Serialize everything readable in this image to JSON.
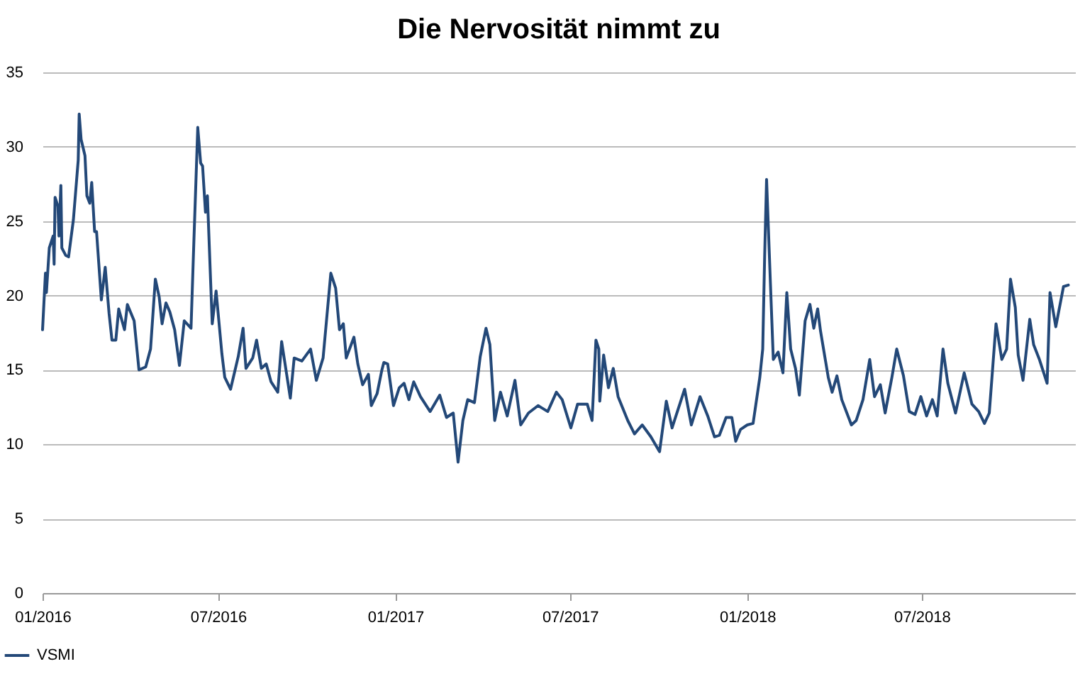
{
  "chart_data": {
    "type": "line",
    "title": "Die Nervosität nimmt zu",
    "x": [
      "2016-01-01",
      "2016-01-04",
      "2016-01-05",
      "2016-01-08",
      "2016-01-12",
      "2016-01-13",
      "2016-01-14",
      "2016-01-17",
      "2016-01-18",
      "2016-01-20",
      "2016-01-21",
      "2016-01-25",
      "2016-01-28",
      "2016-02-02",
      "2016-02-07",
      "2016-02-08",
      "2016-02-10",
      "2016-02-14",
      "2016-02-16",
      "2016-02-19",
      "2016-02-21",
      "2016-02-24",
      "2016-02-26",
      "2016-03-02",
      "2016-03-06",
      "2016-03-10",
      "2016-03-13",
      "2016-03-17",
      "2016-03-20",
      "2016-03-26",
      "2016-03-29",
      "2016-04-05",
      "2016-04-10",
      "2016-04-17",
      "2016-04-22",
      "2016-04-27",
      "2016-05-01",
      "2016-05-04",
      "2016-05-08",
      "2016-05-12",
      "2016-05-17",
      "2016-05-22",
      "2016-05-27",
      "2016-06-03",
      "2016-06-06",
      "2016-06-10",
      "2016-06-13",
      "2016-06-15",
      "2016-06-18",
      "2016-06-20",
      "2016-06-25",
      "2016-06-29",
      "2016-07-05",
      "2016-07-08",
      "2016-07-14",
      "2016-07-22",
      "2016-07-27",
      "2016-07-30",
      "2016-08-06",
      "2016-08-10",
      "2016-08-15",
      "2016-08-20",
      "2016-08-25",
      "2016-09-01",
      "2016-09-05",
      "2016-09-14",
      "2016-09-18",
      "2016-09-26",
      "2016-10-05",
      "2016-10-11",
      "2016-10-18",
      "2016-10-26",
      "2016-10-31",
      "2016-11-04",
      "2016-11-08",
      "2016-11-11",
      "2016-11-19",
      "2016-11-23",
      "2016-11-28",
      "2016-12-04",
      "2016-12-07",
      "2016-12-13",
      "2016-12-18",
      "2016-12-20",
      "2016-12-24",
      "2016-12-30",
      "2017-01-05",
      "2017-01-10",
      "2017-01-15",
      "2017-01-20",
      "2017-01-27",
      "2017-02-06",
      "2017-02-16",
      "2017-02-23",
      "2017-03-02",
      "2017-03-07",
      "2017-03-12",
      "2017-03-17",
      "2017-03-24",
      "2017-03-30",
      "2017-04-05",
      "2017-04-09",
      "2017-04-14",
      "2017-04-20",
      "2017-04-27",
      "2017-05-05",
      "2017-05-11",
      "2017-05-19",
      "2017-05-29",
      "2017-06-08",
      "2017-06-17",
      "2017-06-23",
      "2017-07-02",
      "2017-07-09",
      "2017-07-19",
      "2017-07-24",
      "2017-07-28",
      "2017-07-31",
      "2017-08-01",
      "2017-08-05",
      "2017-08-10",
      "2017-08-15",
      "2017-08-20",
      "2017-08-30",
      "2017-09-06",
      "2017-09-14",
      "2017-09-23",
      "2017-10-02",
      "2017-10-09",
      "2017-10-15",
      "2017-10-28",
      "2017-11-04",
      "2017-11-13",
      "2017-11-21",
      "2017-11-28",
      "2017-12-03",
      "2017-12-10",
      "2017-12-16",
      "2017-12-20",
      "2017-12-25",
      "2018-01-01",
      "2018-01-07",
      "2018-01-14",
      "2018-01-17",
      "2018-01-19",
      "2018-01-21",
      "2018-01-25",
      "2018-01-28",
      "2018-02-02",
      "2018-02-07",
      "2018-02-11",
      "2018-02-15",
      "2018-02-20",
      "2018-02-24",
      "2018-03-02",
      "2018-03-07",
      "2018-03-11",
      "2018-03-15",
      "2018-03-18",
      "2018-03-26",
      "2018-03-30",
      "2018-04-04",
      "2018-04-09",
      "2018-04-19",
      "2018-04-24",
      "2018-05-01",
      "2018-05-08",
      "2018-05-13",
      "2018-05-19",
      "2018-05-24",
      "2018-05-31",
      "2018-06-05",
      "2018-06-12",
      "2018-06-18",
      "2018-06-24",
      "2018-06-30",
      "2018-07-06",
      "2018-07-12",
      "2018-07-17",
      "2018-07-23",
      "2018-07-28",
      "2018-08-05",
      "2018-08-14",
      "2018-08-22",
      "2018-08-29",
      "2018-09-04",
      "2018-09-09",
      "2018-09-16",
      "2018-09-22",
      "2018-09-27",
      "2018-10-01",
      "2018-10-06",
      "2018-10-09",
      "2018-10-14",
      "2018-10-21",
      "2018-10-25",
      "2018-10-31",
      "2018-11-08",
      "2018-11-11",
      "2018-11-17",
      "2018-11-25",
      "2018-11-30"
    ],
    "series": [
      {
        "name": "VSMI",
        "color": "#234878",
        "values": [
          17.7,
          21.5,
          20.2,
          23.2,
          24,
          22.1,
          26.6,
          26,
          24,
          27.4,
          23.2,
          22.7,
          22.6,
          25.1,
          29.1,
          32.2,
          30.5,
          29.4,
          26.7,
          26.2,
          27.6,
          24.3,
          24.3,
          19.7,
          21.9,
          18.8,
          17,
          17,
          19.1,
          17.7,
          19.4,
          18.3,
          15,
          15.2,
          16.4,
          21.1,
          19.9,
          18.1,
          19.5,
          18.9,
          17.7,
          15.3,
          18.3,
          17.8,
          23.7,
          31.3,
          28.9,
          28.7,
          25.6,
          26.7,
          18.1,
          20.3,
          16.1,
          14.5,
          13.7,
          15.9,
          17.8,
          15.1,
          15.8,
          17,
          15.1,
          15.4,
          14.2,
          13.5,
          16.9,
          13.1,
          15.8,
          15.6,
          16.4,
          14.3,
          15.8,
          21.5,
          20.5,
          17.7,
          18.1,
          15.8,
          17.2,
          15.4,
          14,
          14.7,
          12.6,
          13.4,
          15,
          15.5,
          15.4,
          12.6,
          13.8,
          14.1,
          13,
          14.2,
          13.2,
          12.2,
          13.3,
          11.8,
          12.1,
          8.8,
          11.6,
          13,
          12.8,
          15.9,
          17.8,
          16.7,
          11.6,
          13.5,
          11.9,
          14.3,
          11.3,
          12.1,
          12.6,
          12.2,
          13.5,
          13,
          11.1,
          12.7,
          12.7,
          11.6,
          17,
          16.4,
          12.9,
          16,
          13.8,
          15.1,
          13.2,
          11.6,
          10.7,
          11.3,
          10.5,
          9.5,
          12.9,
          11.1,
          13.7,
          11.3,
          13.2,
          11.9,
          10.5,
          10.6,
          11.8,
          11.8,
          10.2,
          11,
          11.3,
          11.4,
          14.5,
          16.4,
          22.6,
          27.8,
          20.8,
          15.7,
          16.2,
          14.8,
          20.2,
          16.4,
          15.1,
          13.3,
          18.3,
          19.4,
          17.8,
          19.1,
          17.6,
          14.5,
          13.5,
          14.6,
          13,
          11.3,
          11.6,
          13,
          15.7,
          13.2,
          14,
          12.1,
          14.5,
          16.4,
          14.6,
          12.2,
          12,
          13.2,
          11.9,
          13,
          11.9,
          16.4,
          14.1,
          12.1,
          14.8,
          12.7,
          12.2,
          11.4,
          12.1,
          18.1,
          15.7,
          16.4,
          21.1,
          19.2,
          16,
          14.3,
          18.4,
          16.7,
          15.7,
          14.1,
          20.2,
          17.9,
          20.6,
          20.7
        ]
      }
    ],
    "xlim": [
      "2016-01-01",
      "2018-12-07"
    ],
    "xticks": [
      {
        "value": "2016-01-01",
        "label": "01/2016"
      },
      {
        "value": "2016-07-01",
        "label": "07/2016"
      },
      {
        "value": "2017-01-01",
        "label": "01/2017"
      },
      {
        "value": "2017-07-01",
        "label": "07/2017"
      },
      {
        "value": "2018-01-01",
        "label": "01/2018"
      },
      {
        "value": "2018-07-01",
        "label": "07/2018"
      }
    ],
    "ylim": [
      0,
      35
    ],
    "yticks": [
      0,
      5,
      10,
      15,
      20,
      25,
      30,
      35
    ],
    "grid": "y",
    "legend": "bottom left",
    "marker": "none",
    "line_style": "solid"
  }
}
